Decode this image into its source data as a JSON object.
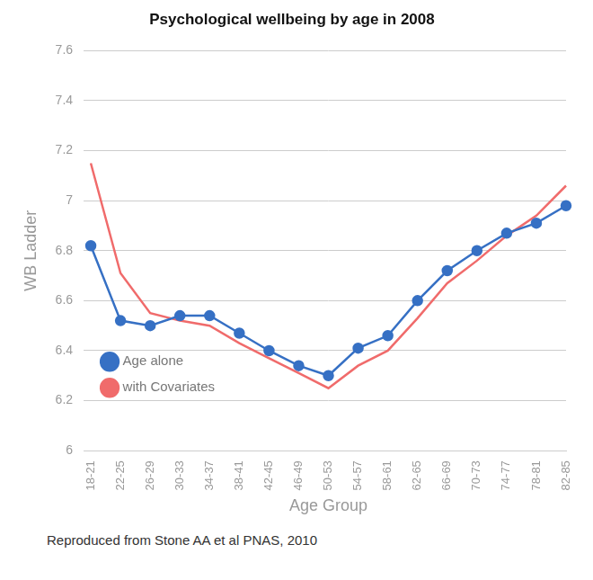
{
  "chart_data": {
    "type": "line",
    "title": "Psychological wellbeing by age in 2008",
    "x_label": "Age Group",
    "y_label": "WB Ladder",
    "annotations": [
      "Reproduced from Stone AA et al PNAS, 2010"
    ],
    "categories": [
      "18-21",
      "22-25",
      "26-29",
      "30-33",
      "34-37",
      "38-41",
      "42-45",
      "46-49",
      "50-53",
      "54-57",
      "58-61",
      "62-65",
      "66-69",
      "70-73",
      "74-77",
      "78-81",
      "82-85"
    ],
    "series": [
      {
        "name": "Age alone",
        "color": "#3670c4",
        "marker": "circle",
        "line_style": "solid",
        "values": [
          6.82,
          6.52,
          6.5,
          6.54,
          6.54,
          6.47,
          6.4,
          6.34,
          6.3,
          6.41,
          6.46,
          6.6,
          6.72,
          6.8,
          6.87,
          6.91,
          6.98
        ]
      },
      {
        "name": "with Covariates",
        "color": "#f06b6b",
        "marker": "none",
        "line_style": "solid",
        "values": [
          7.15,
          6.71,
          6.55,
          6.52,
          6.5,
          6.43,
          6.37,
          6.31,
          6.25,
          6.34,
          6.4,
          6.53,
          6.67,
          6.76,
          6.86,
          6.94,
          7.06
        ]
      }
    ],
    "ylim": [
      6,
      7.6
    ],
    "yticks": [
      6,
      6.2,
      6.4,
      6.6,
      6.8,
      7,
      7.2,
      7.4,
      7.6
    ],
    "grid": true,
    "legend": "top-right"
  }
}
